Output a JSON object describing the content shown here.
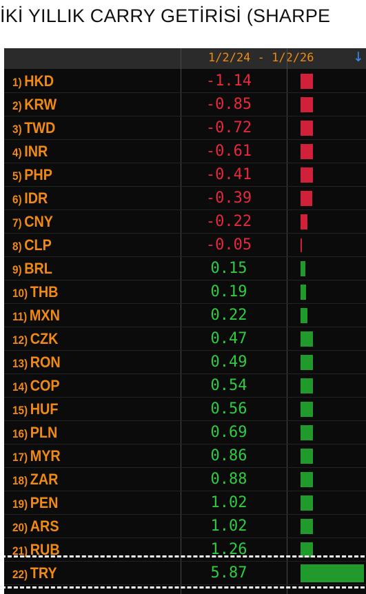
{
  "headline": "İKİ YILLIK CARRY GETİRİSİ (SHARPE",
  "header": {
    "period": "1/2/24 - 1/2/26",
    "sort_icon": "↓"
  },
  "colors": {
    "label": "#f08a14",
    "negative": "#e8283c",
    "positive": "#2ecc40",
    "neg_bar": "#d0203a",
    "pos_bar": "#1f9a2b"
  },
  "chart_data": {
    "type": "bar",
    "orientation": "horizontal",
    "period": "1/2/24 - 1/2/26",
    "categories": [
      "HKD",
      "KRW",
      "TWD",
      "INR",
      "PHP",
      "IDR",
      "CNY",
      "CLP",
      "BRL",
      "THB",
      "MXN",
      "CZK",
      "RON",
      "COP",
      "HUF",
      "PLN",
      "MYR",
      "ZAR",
      "PEN",
      "ARS",
      "RUB",
      "TRY"
    ],
    "ranks": [
      "1)",
      "2)",
      "3)",
      "4)",
      "5)",
      "6)",
      "7)",
      "8)",
      "9)",
      "10)",
      "11)",
      "12)",
      "13)",
      "14)",
      "15)",
      "16)",
      "17)",
      "18)",
      "19)",
      "20)",
      "21)",
      "22)"
    ],
    "values": [
      -1.14,
      -0.85,
      -0.72,
      -0.61,
      -0.41,
      -0.39,
      -0.22,
      -0.05,
      0.15,
      0.19,
      0.22,
      0.47,
      0.49,
      0.54,
      0.56,
      0.69,
      0.86,
      0.88,
      1.02,
      1.02,
      1.26,
      5.87
    ],
    "labels": [
      "-1.14",
      "-0.85",
      "-0.72",
      "-0.61",
      "-0.41",
      "-0.39",
      "-0.22",
      "-0.05",
      "0.15",
      "0.19",
      "0.22",
      "0.47",
      "0.49",
      "0.54",
      "0.56",
      "0.69",
      "0.86",
      "0.88",
      "1.02",
      "1.02",
      "1.26",
      "5.87"
    ],
    "highlighted": "TRY"
  }
}
